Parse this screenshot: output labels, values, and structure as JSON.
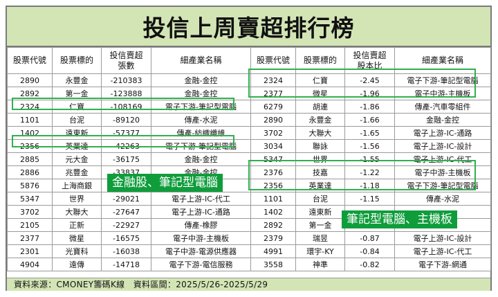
{
  "title": "投信上周賣超排行榜",
  "headers": {
    "left": [
      "股票代號",
      "股票標的",
      "投信賣超\n張數",
      "細產業名稱"
    ],
    "right": [
      "股票代號",
      "股票標的",
      "投信賣超\n股本比",
      "細產業名稱"
    ]
  },
  "left_rows": [
    {
      "code": "2890",
      "name": "永豐金",
      "value": "-210383",
      "industry": "金融-金控"
    },
    {
      "code": "2892",
      "name": "第一金",
      "value": "-123888",
      "industry": "金融-金控"
    },
    {
      "code": "2324",
      "name": "仁寶",
      "value": "-108169",
      "industry": "電子下游-筆記型電腦"
    },
    {
      "code": "1101",
      "name": "台泥",
      "value": "-89120",
      "industry": "傳產-水泥"
    },
    {
      "code": "1402",
      "name": "遠東新",
      "value": "-57377",
      "industry": "傳產-紡織纖維"
    },
    {
      "code": "2356",
      "name": "英業達",
      "value": "-42263",
      "industry": "電子下游-筆記型電腦"
    },
    {
      "code": "2885",
      "name": "元大金",
      "value": "-36175",
      "industry": "金融-金控"
    },
    {
      "code": "2886",
      "name": "兆豐金",
      "value": "-33837",
      "industry": "金融-金控"
    },
    {
      "code": "5876",
      "name": "上海商銀",
      "value": "",
      "industry": ""
    },
    {
      "code": "5347",
      "name": "世界",
      "value": "-29021",
      "industry": "電子上游-IC-代工"
    },
    {
      "code": "3702",
      "name": "大聯大",
      "value": "-27647",
      "industry": "電子上游-IC-通路"
    },
    {
      "code": "2105",
      "name": "正新",
      "value": "-22927",
      "industry": "傳產-橡膠"
    },
    {
      "code": "2377",
      "name": "微星",
      "value": "-16575",
      "industry": "電子中游-主機板"
    },
    {
      "code": "2301",
      "name": "光寶科",
      "value": "-16038",
      "industry": "電子中游-電源供應器"
    },
    {
      "code": "4904",
      "name": "遠傳",
      "value": "-14718",
      "industry": "電子下游-電信服務"
    }
  ],
  "right_rows": [
    {
      "code": "2324",
      "name": "仁寶",
      "value": "-2.45",
      "industry": "電子下游-筆記型電腦"
    },
    {
      "code": "2377",
      "name": "微星",
      "value": "-1.96",
      "industry": "電子中游-主機板"
    },
    {
      "code": "6279",
      "name": "胡連",
      "value": "-1.86",
      "industry": "傳產-汽車零組件"
    },
    {
      "code": "2890",
      "name": "永豐金",
      "value": "-1.66",
      "industry": "金融-金控"
    },
    {
      "code": "3702",
      "name": "大聯大",
      "value": "-1.65",
      "industry": "電子上游-IC-通路"
    },
    {
      "code": "3034",
      "name": "聯詠",
      "value": "-1.56",
      "industry": "電子上游-IC-設計"
    },
    {
      "code": "5347",
      "name": "世界",
      "value": "-1.55",
      "industry": "電子上游-IC-代工"
    },
    {
      "code": "2376",
      "name": "技嘉",
      "value": "-1.22",
      "industry": "電子中游-主機板"
    },
    {
      "code": "2356",
      "name": "英業達",
      "value": "-1.18",
      "industry": "電子下游-筆記型電腦"
    },
    {
      "code": "1101",
      "name": "台泥",
      "value": "-1.15",
      "industry": "傳產-水泥"
    },
    {
      "code": "1402",
      "name": "遠東新",
      "value": "",
      "industry": ""
    },
    {
      "code": "2892",
      "name": "第一金",
      "value": "",
      "industry": ""
    },
    {
      "code": "2379",
      "name": "瑞昱",
      "value": "-0.87",
      "industry": "電子上游-IC-設計"
    },
    {
      "code": "4991",
      "name": "環宇-KY",
      "value": "-0.84",
      "industry": "電子上游-IC-代工"
    },
    {
      "code": "3558",
      "name": "神準",
      "value": "-0.82",
      "industry": "電子下游-網通"
    }
  ],
  "callouts": {
    "left": "金融股、筆記型電腦",
    "right": "筆記型電腦、主機板"
  },
  "footer": "資料來源：CMONEY籌碼K線　資料區間：2025/5/26-2025/5/29",
  "colors": {
    "header_bg": "#d3e5b5",
    "highlight": "#2fb04e",
    "callout_bg": "#0f9d3c"
  }
}
